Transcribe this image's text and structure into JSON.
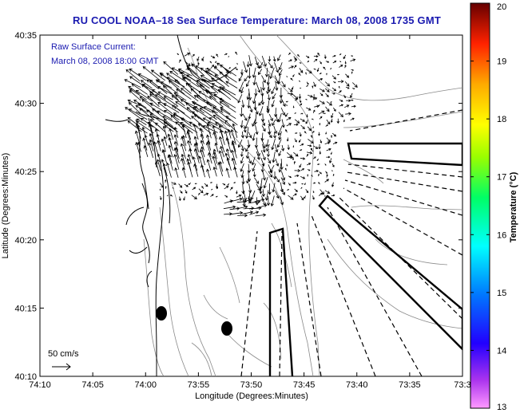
{
  "title": "RU COOL  NOAA–18  Sea Surface Temperature:  March 08, 2008 1735 GMT",
  "annotation": {
    "line1": "Raw Surface Current:",
    "line2": "March 08, 2008 18:00 GMT"
  },
  "scale_label": "50 cm/s",
  "axes": {
    "xlabel": "Longitude (Degrees:Minutes)",
    "ylabel": "Latitude (Degrees:Minutes)",
    "x_ticks": [
      "74:10",
      "74:05",
      "74:00",
      "73:55",
      "73:50",
      "73:45",
      "73:40",
      "73:35",
      "73:3"
    ],
    "y_ticks": [
      "40:35",
      "40:30",
      "40:25",
      "40:20",
      "40:15",
      "40:10"
    ]
  },
  "colorbar": {
    "label": "Temperature (°C)",
    "ticks": [
      "20",
      "19",
      "18",
      "17",
      "16",
      "15",
      "14",
      "13"
    ],
    "min": 13,
    "max": 20,
    "colors": [
      "#ff66ff",
      "#7700cc",
      "#0000ff",
      "#0088ff",
      "#00ffff",
      "#00ff66",
      "#88ff00",
      "#ffff00",
      "#ffaa00",
      "#ff4400",
      "#cc0000",
      "#660000"
    ]
  },
  "colors": {
    "title": "#1a1ab0",
    "coast": "#000000",
    "bathymetry": "#888888"
  }
}
